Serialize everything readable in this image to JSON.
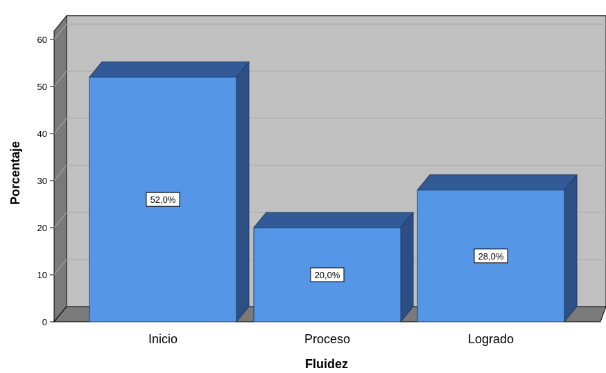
{
  "chart_data": {
    "type": "bar",
    "categories": [
      "Inicio",
      "Proceso",
      "Logrado"
    ],
    "values": [
      52,
      20,
      28
    ],
    "data_labels": [
      "52,0%",
      "20,0%",
      "28,0%"
    ],
    "title": "",
    "xlabel": "Fluidez",
    "ylabel": "Porcentaje",
    "ylim": [
      0,
      60
    ],
    "yticks": [
      "0",
      "10",
      "20",
      "30",
      "40",
      "50",
      "60"
    ],
    "grid": true,
    "legend": "none",
    "style": "3d",
    "colors": {
      "bar_front": "#5596e6",
      "bar_top": "#325a96",
      "bar_side": "#2d4f84",
      "plot_back": "#c0c0c0",
      "left_wall": "#7a7a7a",
      "floor": "#7a7a7a",
      "gridline": "#a9a9a9"
    }
  }
}
